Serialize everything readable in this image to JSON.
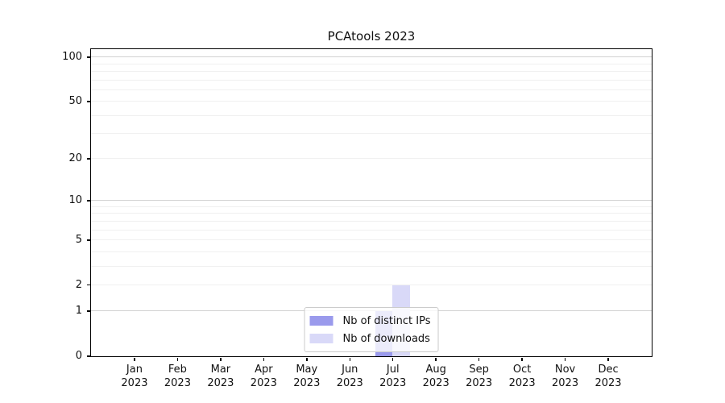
{
  "chart_data": {
    "type": "bar",
    "title": "PCAtools 2023",
    "x_categories": [
      {
        "month": "Jan",
        "year": "2023"
      },
      {
        "month": "Feb",
        "year": "2023"
      },
      {
        "month": "Mar",
        "year": "2023"
      },
      {
        "month": "Apr",
        "year": "2023"
      },
      {
        "month": "May",
        "year": "2023"
      },
      {
        "month": "Jun",
        "year": "2023"
      },
      {
        "month": "Jul",
        "year": "2023"
      },
      {
        "month": "Aug",
        "year": "2023"
      },
      {
        "month": "Sep",
        "year": "2023"
      },
      {
        "month": "Oct",
        "year": "2023"
      },
      {
        "month": "Nov",
        "year": "2023"
      },
      {
        "month": "Dec",
        "year": "2023"
      }
    ],
    "series": [
      {
        "name": "Nb of distinct IPs",
        "color": "#9a9aec",
        "values": [
          0,
          0,
          0,
          0,
          0,
          0,
          1,
          0,
          0,
          0,
          0,
          0
        ]
      },
      {
        "name": "Nb of downloads",
        "color": "#d9d9f8",
        "values": [
          0,
          0,
          0,
          0,
          0,
          0,
          2,
          0,
          0,
          0,
          0,
          0
        ]
      }
    ],
    "yscale": "log1p",
    "ylim": [
      0,
      113
    ],
    "y_ticks": [
      0,
      1,
      2,
      5,
      10,
      20,
      50,
      100
    ],
    "y_tick_labels": [
      "0",
      "1",
      "2",
      "5",
      "10",
      "20",
      "50",
      "100"
    ],
    "y_major_gridlines": [
      1,
      10,
      100
    ],
    "y_minor_gridlines": [
      2,
      3,
      4,
      5,
      6,
      7,
      8,
      9,
      20,
      30,
      40,
      50,
      60,
      70,
      80,
      90
    ],
    "grid": true,
    "legend_position": "lower center"
  },
  "colors": {
    "axis": "#000000",
    "grid_minor": "#f0f0f0",
    "grid_major": "#d2d2d2",
    "legend_border": "#cccccc",
    "text": "#111111"
  }
}
